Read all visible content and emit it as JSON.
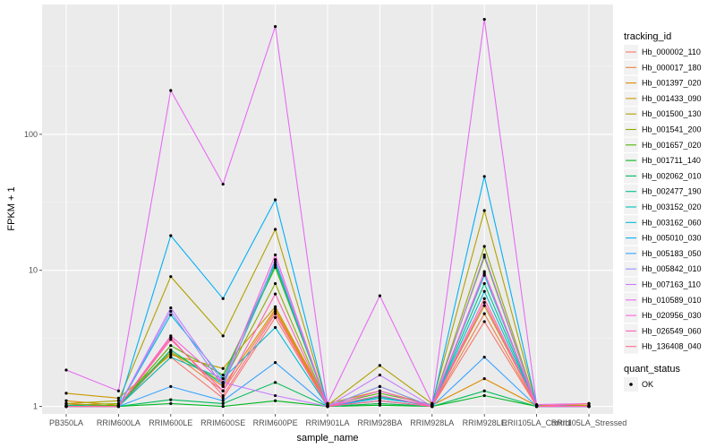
{
  "chart_data": {
    "type": "line",
    "xlabel": "sample_name",
    "ylabel": "FPKM + 1",
    "y_scale": "log10",
    "y_ticks": [
      1,
      10,
      100
    ],
    "y_tick_labels": [
      "1",
      "10",
      "100"
    ],
    "ylim": [
      0.88,
      900
    ],
    "grid": true,
    "legend_position": "right",
    "legend_title": "tracking_id",
    "status_legend_title": "quant_status",
    "status_legend_items": [
      "OK"
    ],
    "categories": [
      "PB350LA",
      "RRIM600LA",
      "RRIM600LE",
      "RRIM600SE",
      "RRIM600PE",
      "RRIM901LA",
      "RRIM928BA",
      "RRIM928LA",
      "RRIM928LE",
      "RRII105LA_Control",
      "RRII105LA_Stressed"
    ],
    "colors": {
      "panel": "#ebebeb",
      "grid_major": "#ffffff",
      "grid_minor": "#f5f5f5",
      "point": "#000000"
    },
    "series": [
      {
        "name": "Hb_000002_110",
        "color": "#F8766D",
        "values": [
          1.0,
          1.0,
          2.3,
          1.15,
          4.5,
          1.0,
          1.05,
          1.0,
          4.2,
          1.0,
          1.0
        ]
      },
      {
        "name": "Hb_000017_180",
        "color": "#EE8042",
        "values": [
          1.05,
          1.0,
          2.5,
          1.3,
          5.0,
          1.0,
          1.1,
          1.0,
          4.8,
          1.0,
          1.02
        ]
      },
      {
        "name": "Hb_001397_020",
        "color": "#DE8C00",
        "values": [
          1.1,
          1.02,
          2.6,
          1.4,
          5.2,
          1.02,
          1.15,
          1.02,
          1.6,
          1.01,
          1.0
        ]
      },
      {
        "name": "Hb_001433_090",
        "color": "#C99800",
        "values": [
          1.25,
          1.15,
          2.4,
          1.9,
          5.4,
          1.05,
          1.3,
          1.02,
          5.5,
          1.02,
          1.02
        ]
      },
      {
        "name": "Hb_001500_130",
        "color": "#AFA100",
        "values": [
          1.05,
          1.1,
          9.0,
          3.3,
          20.0,
          1.02,
          2.0,
          1.05,
          27.5,
          1.01,
          1.0
        ]
      },
      {
        "name": "Hb_001541_200",
        "color": "#8DAB00",
        "values": [
          1.02,
          1.05,
          2.5,
          1.5,
          8.0,
          1.0,
          1.4,
          1.0,
          15.0,
          1.0,
          1.0
        ]
      },
      {
        "name": "Hb_001657_020",
        "color": "#53B400",
        "values": [
          1.0,
          1.02,
          2.8,
          1.7,
          10.5,
          1.02,
          1.25,
          1.03,
          12.5,
          1.0,
          1.0
        ]
      },
      {
        "name": "Hb_001711_140",
        "color": "#00B81F",
        "values": [
          1.0,
          1.0,
          1.05,
          1.0,
          1.1,
          1.0,
          1.02,
          1.0,
          1.2,
          1.0,
          1.0
        ]
      },
      {
        "name": "Hb_002062_010",
        "color": "#00BC59",
        "values": [
          1.0,
          1.0,
          1.12,
          1.05,
          1.5,
          1.0,
          1.05,
          1.0,
          1.3,
          1.0,
          1.0
        ]
      },
      {
        "name": "Hb_002477_190",
        "color": "#00C08D",
        "values": [
          1.02,
          1.0,
          2.6,
          1.45,
          11.0,
          1.0,
          1.18,
          1.0,
          8.0,
          1.0,
          1.0
        ]
      },
      {
        "name": "Hb_003152_020",
        "color": "#00C0B7",
        "values": [
          1.0,
          1.0,
          2.3,
          1.6,
          11.5,
          1.0,
          1.2,
          1.0,
          9.2,
          1.0,
          1.0
        ]
      },
      {
        "name": "Hb_003162_060",
        "color": "#00BCD8",
        "values": [
          1.0,
          1.0,
          4.7,
          1.6,
          3.8,
          1.0,
          1.1,
          1.0,
          7.0,
          1.0,
          1.0
        ]
      },
      {
        "name": "Hb_005010_030",
        "color": "#00B0F6",
        "values": [
          1.0,
          1.0,
          18.0,
          6.2,
          33.0,
          1.0,
          1.15,
          1.02,
          49.0,
          1.01,
          1.0
        ]
      },
      {
        "name": "Hb_005183_050",
        "color": "#35A2FF",
        "values": [
          1.0,
          1.0,
          1.4,
          1.1,
          2.1,
          1.0,
          1.1,
          1.0,
          2.3,
          1.0,
          1.0
        ]
      },
      {
        "name": "Hb_005842_010",
        "color": "#9590FF",
        "values": [
          1.0,
          1.0,
          5.0,
          1.4,
          12.0,
          1.0,
          1.4,
          1.0,
          9.5,
          1.0,
          1.0
        ]
      },
      {
        "name": "Hb_007163_110",
        "color": "#C77CFF",
        "values": [
          1.0,
          1.0,
          5.3,
          1.5,
          1.2,
          1.0,
          1.7,
          1.0,
          13.0,
          1.0,
          1.0
        ]
      },
      {
        "name": "Hb_010589_010",
        "color": "#E76BF3",
        "values": [
          1.85,
          1.3,
          210.0,
          43.0,
          620.0,
          1.05,
          6.5,
          1.05,
          700.0,
          1.03,
          1.05
        ]
      },
      {
        "name": "Hb_020956_030",
        "color": "#FA62DB",
        "values": [
          1.0,
          1.0,
          3.3,
          1.5,
          13.0,
          1.0,
          1.3,
          1.0,
          9.8,
          1.0,
          1.0
        ]
      },
      {
        "name": "Hb_026549_060",
        "color": "#FF62BC",
        "values": [
          1.0,
          1.0,
          3.1,
          1.3,
          6.7,
          1.0,
          1.2,
          1.0,
          5.8,
          1.0,
          1.0
        ]
      },
      {
        "name": "Hb_136408_040",
        "color": "#FF6C91",
        "values": [
          1.0,
          1.0,
          3.2,
          1.2,
          4.8,
          1.0,
          1.1,
          1.0,
          6.2,
          1.0,
          1.05
        ]
      }
    ]
  }
}
